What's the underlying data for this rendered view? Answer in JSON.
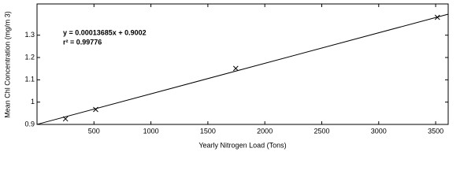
{
  "chart_data": {
    "type": "scatter",
    "x_label": "Yearly Nitrogen Load (Tons)",
    "y_label": "Mean Chl Concentration (mg/m 3)",
    "annotations": [
      "y = 0.00013685x + 0.9002",
      "r² = 0.99776"
    ],
    "series": [
      {
        "color": "#000000",
        "marker": "x",
        "x": [
          250,
          515,
          1745,
          3515
        ],
        "values": [
          0.925,
          0.967,
          1.151,
          1.38
        ]
      },
      {
        "color": "#000000",
        "marker": "line",
        "x": [
          0,
          3610
        ],
        "values": [
          0.9002,
          1.3942
        ]
      }
    ],
    "xlim": [
      0,
      3610
    ],
    "ylim": [
      0.9,
      1.44
    ],
    "xticks": [
      500,
      1000,
      1500,
      2000,
      2500,
      3000,
      3500
    ],
    "yticks": [
      0.9,
      1,
      1.1,
      1.2,
      1.3
    ]
  }
}
